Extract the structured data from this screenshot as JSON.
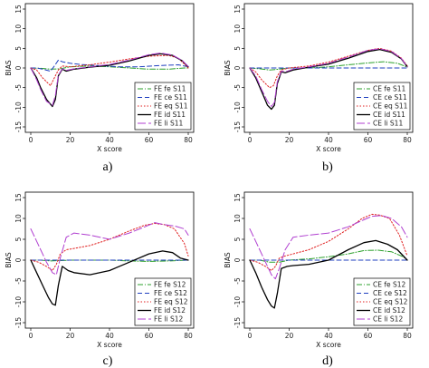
{
  "chart_data": [
    {
      "type": "line",
      "caption": "a)",
      "xlabel": "X score",
      "ylabel": "BIAS",
      "xlim": [
        0,
        80
      ],
      "ylim": [
        -15,
        15
      ],
      "xticks": [
        0,
        20,
        40,
        60,
        80
      ],
      "yticks": [
        -15,
        -10,
        -5,
        0,
        5,
        10,
        15
      ],
      "legend_position": "bottom-right",
      "series": [
        {
          "name": "FE fe S11",
          "color": "#2ca02c",
          "dash": "6,2,1,2",
          "x": [
            0,
            5,
            10,
            15,
            20,
            30,
            40,
            50,
            60,
            70,
            78,
            80
          ],
          "y": [
            0,
            -0.1,
            -0.3,
            -0.2,
            0.3,
            0.5,
            0.3,
            0,
            -0.3,
            -0.3,
            0,
            0
          ]
        },
        {
          "name": "FE ce S11",
          "color": "#1f3fbf",
          "dash": "5,3",
          "x": [
            0,
            3,
            6,
            10,
            12,
            14,
            16,
            20,
            25,
            35,
            45,
            55,
            65,
            75,
            80
          ],
          "y": [
            0,
            0,
            -0.3,
            -0.8,
            0.5,
            2,
            1.6,
            1.2,
            0.9,
            0.6,
            0.3,
            0.3,
            0.6,
            0.8,
            0.3
          ]
        },
        {
          "name": "FE eq S11",
          "color": "#e02020",
          "dash": "1.5,2",
          "x": [
            0,
            3,
            6,
            10,
            12,
            14,
            16,
            20,
            30,
            40,
            50,
            60,
            70,
            75,
            80
          ],
          "y": [
            0,
            -0.5,
            -2.5,
            -4.5,
            -2.5,
            -0.5,
            0.5,
            0.3,
            0.8,
            1.5,
            2.3,
            3,
            3.2,
            2.5,
            0
          ]
        },
        {
          "name": "FE id S11",
          "color": "#000000",
          "dash": "",
          "x": [
            0,
            3,
            5,
            8,
            11,
            12.5,
            14,
            16,
            18,
            22,
            30,
            40,
            50,
            60,
            66,
            72,
            77,
            80
          ],
          "y": [
            0,
            -2.5,
            -5,
            -8,
            -9.8,
            -8,
            -2,
            -0.3,
            -0.8,
            -0.3,
            0.2,
            0.7,
            1.8,
            3.2,
            3.6,
            3.2,
            1.8,
            0.3
          ]
        },
        {
          "name": "FE li S11",
          "color": "#b03fd0",
          "dash": "9,3",
          "x": [
            0,
            3,
            5,
            8,
            11,
            12.5,
            14,
            16,
            18,
            22,
            30,
            40,
            50,
            60,
            66,
            72,
            77,
            80
          ],
          "y": [
            0,
            -3,
            -5.5,
            -8.5,
            -9.5,
            -7,
            -1.8,
            -0.2,
            -0.6,
            -0.2,
            0.3,
            0.9,
            2,
            3.4,
            3.8,
            3.3,
            1.9,
            0.4
          ]
        }
      ]
    },
    {
      "type": "line",
      "caption": "b)",
      "xlabel": "X score",
      "ylabel": "BIAS",
      "xlim": [
        0,
        80
      ],
      "ylim": [
        -15,
        15
      ],
      "xticks": [
        0,
        20,
        40,
        60,
        80
      ],
      "yticks": [
        -15,
        -10,
        -5,
        0,
        5,
        10,
        15
      ],
      "legend_position": "bottom-right",
      "series": [
        {
          "name": "CE fe S11",
          "color": "#2ca02c",
          "dash": "6,2,1,2",
          "x": [
            0,
            5,
            10,
            15,
            20,
            30,
            40,
            50,
            60,
            68,
            75,
            80
          ],
          "y": [
            0,
            -0.2,
            -0.5,
            -0.3,
            0,
            0,
            0.3,
            0.8,
            1.3,
            1.6,
            1.2,
            0.2
          ]
        },
        {
          "name": "CE ce S11",
          "color": "#1f3fbf",
          "dash": "5,3",
          "x": [
            0,
            5,
            10,
            15,
            20,
            30,
            40,
            50,
            60,
            70,
            80
          ],
          "y": [
            0,
            0,
            0,
            0,
            0,
            0,
            0,
            0,
            0,
            0,
            0
          ]
        },
        {
          "name": "CE eq S11",
          "color": "#e02020",
          "dash": "1.5,2",
          "x": [
            0,
            3,
            6,
            10,
            12,
            14,
            16,
            20,
            30,
            40,
            50,
            60,
            66,
            72,
            77,
            80
          ],
          "y": [
            0,
            -1,
            -3,
            -5,
            -4.5,
            -2,
            -0.5,
            0,
            0.5,
            1.5,
            3,
            4.5,
            5,
            4.3,
            2.5,
            0.5
          ]
        },
        {
          "name": "CE id S11",
          "color": "#000000",
          "dash": "",
          "x": [
            0,
            3,
            6,
            9,
            11,
            12.5,
            14,
            16,
            18,
            22,
            30,
            40,
            50,
            60,
            66,
            72,
            77,
            80
          ],
          "y": [
            0,
            -2.5,
            -6,
            -9.5,
            -10.5,
            -9.5,
            -4,
            -1,
            -1.2,
            -0.5,
            0.2,
            1,
            2.5,
            4.2,
            4.7,
            4,
            2.3,
            0.3
          ]
        },
        {
          "name": "CE li S11",
          "color": "#b03fd0",
          "dash": "9,3",
          "x": [
            0,
            3,
            6,
            9,
            11,
            12.5,
            14,
            16,
            18,
            22,
            30,
            40,
            50,
            60,
            66,
            72,
            77,
            80
          ],
          "y": [
            0,
            -2,
            -5.5,
            -8.5,
            -9.8,
            -8.8,
            -3.5,
            -0.8,
            -1,
            -0.3,
            0.3,
            1.2,
            2.8,
            4.5,
            4.9,
            4.2,
            2.4,
            0.3
          ]
        }
      ]
    },
    {
      "type": "line",
      "caption": "c)",
      "xlabel": "X score",
      "ylabel": "BIAS",
      "xlim": [
        0,
        80
      ],
      "ylim": [
        -15,
        15
      ],
      "xticks": [
        0,
        20,
        40,
        60,
        80
      ],
      "yticks": [
        -15,
        -10,
        -5,
        0,
        5,
        10,
        15
      ],
      "legend_position": "bottom-right",
      "series": [
        {
          "name": "FE fe S12",
          "color": "#2ca02c",
          "dash": "6,2,1,2",
          "x": [
            0,
            5,
            10,
            15,
            20,
            30,
            40,
            50,
            60,
            70,
            80
          ],
          "y": [
            0,
            0,
            -0.2,
            -0.1,
            0,
            0,
            0,
            -0.2,
            -0.3,
            -0.2,
            0
          ]
        },
        {
          "name": "FE ce S12",
          "color": "#1f3fbf",
          "dash": "5,3",
          "x": [
            0,
            5,
            10,
            15,
            20,
            30,
            40,
            50,
            60,
            70,
            80
          ],
          "y": [
            0,
            0,
            0,
            0,
            0,
            0,
            0,
            0,
            0,
            0,
            0
          ]
        },
        {
          "name": "FE eq S12",
          "color": "#e02020",
          "dash": "1.5,2",
          "x": [
            0,
            4,
            8,
            11,
            13,
            15,
            18,
            22,
            30,
            40,
            50,
            58,
            63,
            68,
            73,
            78,
            80
          ],
          "y": [
            0,
            -0.5,
            -1.5,
            -2.5,
            -1,
            1.5,
            2.5,
            2.8,
            3.5,
            5,
            7,
            8.4,
            8.8,
            8.5,
            7.5,
            4,
            1
          ]
        },
        {
          "name": "FE id S12",
          "color": "#000000",
          "dash": "",
          "x": [
            0,
            3,
            6,
            9,
            11,
            12.5,
            14,
            16,
            19,
            22,
            30,
            40,
            50,
            60,
            67,
            72,
            76,
            80
          ],
          "y": [
            0,
            -3,
            -6,
            -9,
            -10.5,
            -10.8,
            -6,
            -1.5,
            -2.5,
            -3,
            -3.5,
            -2.5,
            -0.5,
            1.5,
            2.2,
            1.8,
            0.5,
            0
          ]
        },
        {
          "name": "FE li S12",
          "color": "#b03fd0",
          "dash": "9,3",
          "x": [
            0,
            2,
            5,
            8,
            11,
            13,
            15,
            18,
            22,
            30,
            40,
            50,
            58,
            63,
            68,
            73,
            78,
            80
          ],
          "y": [
            7.5,
            5.5,
            2.5,
            -0.5,
            -3,
            -3.5,
            0.5,
            5.5,
            6.5,
            6,
            5,
            6.5,
            8,
            9,
            8.5,
            8.2,
            7.5,
            6
          ]
        }
      ]
    },
    {
      "type": "line",
      "caption": "d)",
      "xlabel": "X score",
      "ylabel": "BIAS",
      "xlim": [
        0,
        80
      ],
      "ylim": [
        -15,
        15
      ],
      "xticks": [
        0,
        20,
        40,
        60,
        80
      ],
      "yticks": [
        -15,
        -10,
        -5,
        0,
        5,
        10,
        15
      ],
      "legend_position": "bottom-right",
      "series": [
        {
          "name": "CE fe S12",
          "color": "#2ca02c",
          "dash": "6,2,1,2",
          "x": [
            0,
            5,
            10,
            15,
            20,
            30,
            40,
            50,
            58,
            65,
            72,
            78,
            80
          ],
          "y": [
            0,
            0,
            -0.5,
            -0.5,
            0,
            0.3,
            0.8,
            1.5,
            2.3,
            2.4,
            2,
            0.8,
            0
          ]
        },
        {
          "name": "CE ce S12",
          "color": "#1f3fbf",
          "dash": "5,3",
          "x": [
            0,
            5,
            10,
            15,
            20,
            30,
            40,
            50,
            60,
            70,
            80
          ],
          "y": [
            0,
            0,
            0,
            0,
            0,
            0,
            0,
            0,
            0,
            0,
            0
          ]
        },
        {
          "name": "CE eq S12",
          "color": "#e02020",
          "dash": "1.5,2",
          "x": [
            0,
            4,
            8,
            11,
            13,
            15,
            18,
            22,
            30,
            40,
            50,
            57,
            62,
            66,
            71,
            76,
            80
          ],
          "y": [
            0,
            -0.5,
            -1.5,
            -2.5,
            -1.5,
            0.5,
            1,
            1.5,
            2.5,
            4.5,
            7.5,
            10,
            11,
            10.8,
            10,
            6,
            1
          ]
        },
        {
          "name": "CE id S12",
          "color": "#000000",
          "dash": "",
          "x": [
            0,
            3,
            6,
            9,
            11,
            12.5,
            14,
            16,
            19,
            22,
            30,
            40,
            50,
            58,
            64,
            70,
            75,
            80
          ],
          "y": [
            0,
            -3,
            -6.5,
            -9.5,
            -11,
            -11.5,
            -8,
            -2,
            -1.5,
            -1.3,
            -1,
            0,
            2.5,
            4.2,
            4.7,
            3.8,
            2.5,
            0
          ]
        },
        {
          "name": "CE li S12",
          "color": "#b03fd0",
          "dash": "9,3",
          "x": [
            0,
            2,
            5,
            8,
            11,
            13,
            15,
            18,
            22,
            30,
            40,
            50,
            57,
            62,
            67,
            72,
            77,
            80
          ],
          "y": [
            7.5,
            5.5,
            2.5,
            -0.5,
            -3.5,
            -4.5,
            -2,
            2.5,
            5.5,
            6,
            6.5,
            8,
            9.5,
            10.5,
            10.7,
            10,
            8,
            5.5
          ]
        }
      ]
    }
  ]
}
